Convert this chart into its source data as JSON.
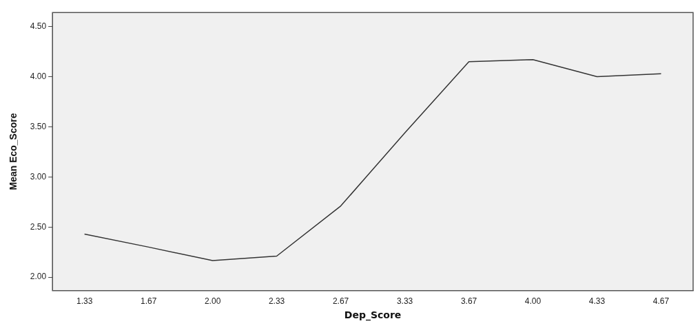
{
  "chart_data": {
    "type": "line",
    "xlabel": "Dep_Score",
    "ylabel": "Mean Eco_Score",
    "categories": [
      "1.33",
      "1.67",
      "2.00",
      "2.33",
      "2.67",
      "3.33",
      "3.67",
      "4.00",
      "4.33",
      "4.67"
    ],
    "series": [
      {
        "color": "#333333",
        "values": [
          2.43,
          2.3,
          2.165,
          2.21,
          2.71,
          3.44,
          4.15,
          4.17,
          4.0,
          4.03
        ]
      }
    ],
    "ylim": [
      1.865,
      4.64
    ],
    "yticks": [
      {
        "value": 2,
        "label": "2.00"
      },
      {
        "value": 2.5,
        "label": "2.50"
      },
      {
        "value": 3,
        "label": "3.00"
      },
      {
        "value": 3.5,
        "label": "3.50"
      },
      {
        "value": 4,
        "label": "4.00"
      },
      {
        "value": 4.5,
        "label": "4.50"
      }
    ],
    "grid": false,
    "legend": false,
    "marker": "none",
    "line_style": "solid"
  }
}
